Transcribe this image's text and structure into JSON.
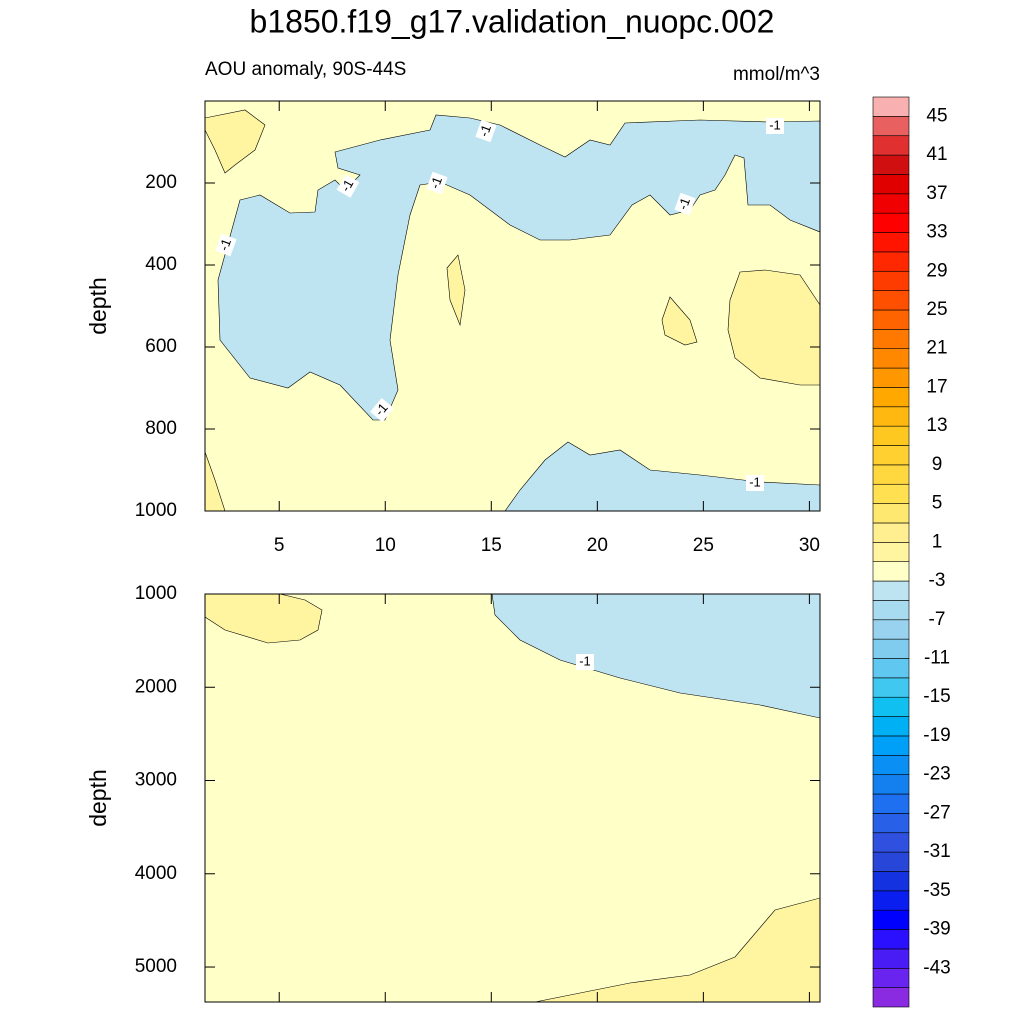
{
  "chart_data": {
    "type": "contour",
    "title": "b1850.f19_g17.validation_nuopc.002",
    "left_string": "AOU anomaly, 90S-44S",
    "right_string": "mmol/m^3",
    "panels": [
      {
        "ylabel": "depth",
        "xlim": [
          1.5,
          30.5
        ],
        "xticks": [
          5,
          10,
          15,
          20,
          25,
          30
        ],
        "xtick_labels": true,
        "ylim": [
          0,
          1000
        ],
        "yticks": [
          200,
          400,
          600,
          800,
          1000
        ],
        "reverse_y": true,
        "contour_labels": [
          -1,
          -1,
          -1,
          -1,
          -1,
          -1,
          -1,
          -1
        ]
      },
      {
        "ylabel": "depth",
        "xlim": [
          1.5,
          30.5
        ],
        "xticks": [
          5,
          10,
          15,
          20,
          25,
          30
        ],
        "xtick_labels": false,
        "ylim": [
          1000,
          5375
        ],
        "yticks": [
          1000,
          2000,
          3000,
          4000,
          5000
        ],
        "reverse_y": true,
        "contour_labels": [
          -1
        ]
      }
    ],
    "colorbar": {
      "levels": [
        -45,
        -43,
        -41,
        -39,
        -37,
        -35,
        -33,
        -31,
        -29,
        -27,
        -25,
        -23,
        -21,
        -19,
        -17,
        -15,
        -13,
        -11,
        -9,
        -7,
        -5,
        -3,
        -1,
        1,
        3,
        5,
        7,
        9,
        11,
        13,
        15,
        17,
        19,
        21,
        23,
        25,
        27,
        29,
        31,
        33,
        35,
        37,
        39,
        41,
        43,
        45
      ],
      "ticks": [
        45,
        41,
        37,
        33,
        29,
        25,
        21,
        17,
        13,
        9,
        5,
        1,
        -3,
        -7,
        -11,
        -15,
        -19,
        -23,
        -27,
        -31,
        -35,
        -39,
        -43
      ],
      "colors": [
        "#8a2be2",
        "#6a24f0",
        "#4a1cf5",
        "#2a10ff",
        "#0000ff",
        "#0a1ef0",
        "#1432e0",
        "#2846d8",
        "#3050e0",
        "#2860e8",
        "#1e70f0",
        "#1480f0",
        "#0a90f5",
        "#00a0f8",
        "#00b0f5",
        "#10c0f0",
        "#40c8f0",
        "#60c8f0",
        "#80ccee",
        "#98d2ee",
        "#a8daf0",
        "#bee4f2",
        "#ffffc8",
        "#fff5a0",
        "#ffef90",
        "#ffe870",
        "#ffe050",
        "#ffd840",
        "#ffd030",
        "#ffc820",
        "#ffb810",
        "#ffa800",
        "#ff9800",
        "#ff8800",
        "#ff7800",
        "#ff6400",
        "#ff5000",
        "#ff3c00",
        "#ff2800",
        "#ff1400",
        "#ff0000",
        "#f00000",
        "#e00000",
        "#d01010",
        "#e03030",
        "#e86060",
        "#f8b0b0"
      ]
    }
  }
}
